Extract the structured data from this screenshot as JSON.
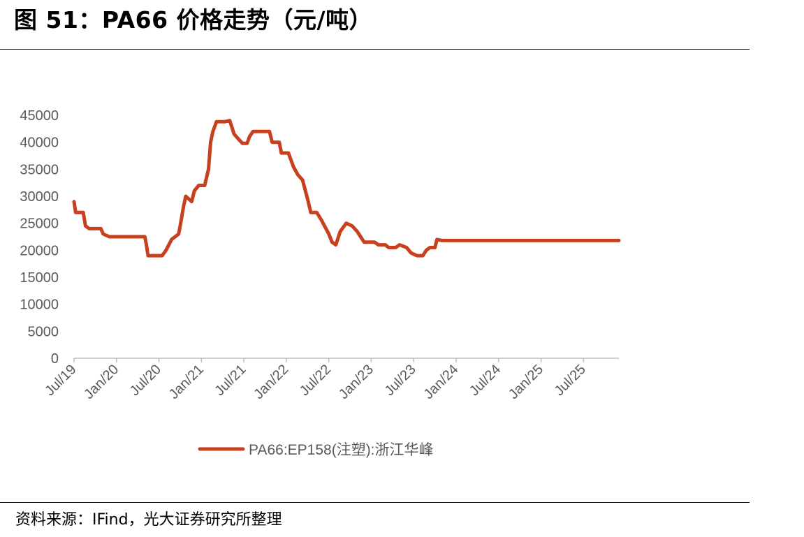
{
  "header": {
    "title": "图 51：PA66 价格走势（元/吨）"
  },
  "footer": {
    "source": "资料来源：IFind，光大证券研究所整理"
  },
  "chart_data": {
    "type": "line",
    "title": "",
    "xlabel": "",
    "ylabel": "",
    "ylim": [
      0,
      45000
    ],
    "yticks": [
      "0",
      "5000",
      "10000",
      "15000",
      "20000",
      "25000",
      "30000",
      "35000",
      "40000",
      "45000"
    ],
    "xticks": [
      "Jul/19",
      "Jan/20",
      "Jul/20",
      "Jan/21",
      "Jul/21",
      "Jan/22",
      "Jul/22",
      "Jan/23",
      "Jul/23",
      "Jan/24",
      "Jul/24",
      "Jan/25",
      "Jul/25"
    ],
    "xrange": [
      "2019-07",
      "2025-12"
    ],
    "grid": false,
    "legend_position": "bottom-center",
    "colors": {
      "series": "#C8411E",
      "axis": "#BFBFBF",
      "text": "#595959"
    },
    "series": [
      {
        "name": "PA66:EP158(注塑):浙江华峰",
        "points": [
          [
            "2019-07-01",
            29000
          ],
          [
            "2019-07-08",
            27000
          ],
          [
            "2019-08-10",
            27000
          ],
          [
            "2019-08-20",
            24500
          ],
          [
            "2019-09-05",
            24000
          ],
          [
            "2019-10-25",
            24000
          ],
          [
            "2019-11-05",
            23000
          ],
          [
            "2019-12-01",
            22500
          ],
          [
            "2020-05-01",
            22500
          ],
          [
            "2020-05-08",
            21000
          ],
          [
            "2020-05-15",
            19000
          ],
          [
            "2020-07-15",
            19000
          ],
          [
            "2020-08-01",
            20000
          ],
          [
            "2020-08-25",
            22000
          ],
          [
            "2020-09-25",
            23000
          ],
          [
            "2020-10-05",
            25500
          ],
          [
            "2020-10-15",
            28000
          ],
          [
            "2020-10-25",
            30000
          ],
          [
            "2020-11-20",
            29000
          ],
          [
            "2020-12-01",
            31000
          ],
          [
            "2020-12-20",
            32000
          ],
          [
            "2021-01-15",
            32000
          ],
          [
            "2021-02-01",
            35000
          ],
          [
            "2021-02-10",
            40000
          ],
          [
            "2021-02-20",
            42000
          ],
          [
            "2021-03-05",
            43800
          ],
          [
            "2021-04-10",
            43800
          ],
          [
            "2021-05-01",
            44000
          ],
          [
            "2021-05-20",
            41500
          ],
          [
            "2021-06-10",
            40500
          ],
          [
            "2021-06-25",
            39800
          ],
          [
            "2021-07-15",
            39800
          ],
          [
            "2021-07-25",
            41000
          ],
          [
            "2021-08-10",
            42000
          ],
          [
            "2021-10-20",
            42000
          ],
          [
            "2021-11-01",
            40000
          ],
          [
            "2021-12-01",
            40000
          ],
          [
            "2021-12-10",
            38000
          ],
          [
            "2022-01-10",
            38000
          ],
          [
            "2022-02-01",
            35500
          ],
          [
            "2022-02-20",
            34000
          ],
          [
            "2022-03-10",
            33000
          ],
          [
            "2022-04-01",
            29500
          ],
          [
            "2022-04-15",
            27000
          ],
          [
            "2022-05-10",
            27000
          ],
          [
            "2022-06-01",
            25500
          ],
          [
            "2022-07-01",
            23000
          ],
          [
            "2022-07-15",
            21500
          ],
          [
            "2022-08-01",
            21000
          ],
          [
            "2022-08-20",
            23500
          ],
          [
            "2022-09-15",
            25000
          ],
          [
            "2022-10-10",
            24500
          ],
          [
            "2022-11-01",
            23500
          ],
          [
            "2022-12-01",
            21500
          ],
          [
            "2023-01-15",
            21500
          ],
          [
            "2023-02-01",
            21000
          ],
          [
            "2023-03-01",
            21000
          ],
          [
            "2023-03-15",
            20500
          ],
          [
            "2023-04-15",
            20500
          ],
          [
            "2023-05-01",
            21000
          ],
          [
            "2023-06-01",
            20500
          ],
          [
            "2023-06-20",
            19500
          ],
          [
            "2023-07-15",
            19000
          ],
          [
            "2023-08-10",
            19000
          ],
          [
            "2023-08-25",
            20000
          ],
          [
            "2023-09-10",
            20500
          ],
          [
            "2023-10-01",
            20500
          ],
          [
            "2023-10-10",
            22000
          ],
          [
            "2023-11-01",
            21800
          ],
          [
            "2025-12-01",
            21800
          ]
        ]
      }
    ]
  }
}
